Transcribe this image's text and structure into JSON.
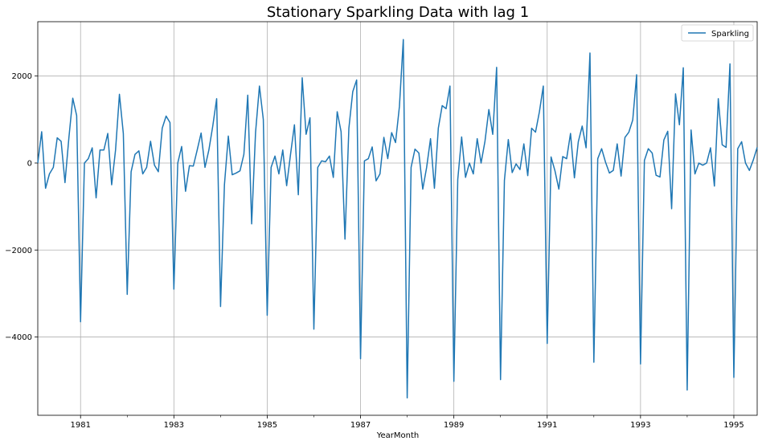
{
  "chart_data": {
    "type": "line",
    "title": "Stationary Sparkling Data with lag 1",
    "xlabel": "YearMonth",
    "ylabel": "",
    "x_start": "1980-02",
    "x_step": "month",
    "xlim": [
      "1980-02",
      "1995-07"
    ],
    "ylim": [
      -5800,
      3250
    ],
    "grid": true,
    "legend_position": "top-right",
    "xticks": [
      "1981",
      "1983",
      "1985",
      "1987",
      "1989",
      "1991",
      "1993",
      "1995"
    ],
    "yticks": [
      "−4000",
      "−2000",
      "0",
      "2000"
    ],
    "ytick_values": [
      -4000,
      -2000,
      0,
      2000
    ],
    "series": [
      {
        "name": "Sparkling",
        "color": "#1f77b4",
        "values": [
          0,
          720,
          -580,
          -250,
          -100,
          580,
          500,
          -450,
          580,
          1490,
          1090,
          -3650,
          0,
          100,
          350,
          -800,
          300,
          300,
          680,
          -500,
          300,
          1580,
          680,
          -3020,
          -200,
          200,
          280,
          -250,
          -100,
          500,
          -50,
          -200,
          800,
          1080,
          930,
          -2900,
          0,
          380,
          -650,
          -60,
          -70,
          300,
          690,
          -100,
          300,
          850,
          1480,
          -3300,
          -500,
          620,
          -270,
          -230,
          -180,
          200,
          1560,
          -1400,
          700,
          1770,
          1000,
          -3500,
          -100,
          160,
          -250,
          300,
          -520,
          200,
          880,
          -730,
          1960,
          660,
          1040,
          -3820,
          -100,
          50,
          30,
          160,
          -330,
          1180,
          720,
          -1750,
          800,
          1640,
          1910,
          -4500,
          50,
          100,
          370,
          -410,
          -250,
          590,
          100,
          700,
          470,
          1300,
          2840,
          -5400,
          -100,
          320,
          230,
          -600,
          -100,
          560,
          -580,
          800,
          1320,
          1250,
          1770,
          -5020,
          -380,
          600,
          -330,
          0,
          -250,
          560,
          0,
          500,
          1230,
          660,
          2200,
          -4980,
          -400,
          540,
          -220,
          -20,
          -150,
          440,
          -290,
          800,
          710,
          1180,
          1770,
          -4150,
          140,
          -180,
          -600,
          150,
          100,
          680,
          -340,
          490,
          850,
          350,
          2530,
          -4580,
          100,
          330,
          20,
          -230,
          -170,
          440,
          -300,
          590,
          710,
          990,
          2030,
          -4620,
          60,
          330,
          230,
          -280,
          -320,
          530,
          730,
          -1050,
          1590,
          880,
          2190,
          -5220,
          760,
          -250,
          0,
          -50,
          0,
          350,
          -530,
          1480,
          420,
          360,
          2280,
          -4930,
          330,
          490,
          0,
          -170,
          70,
          360
        ]
      }
    ]
  }
}
